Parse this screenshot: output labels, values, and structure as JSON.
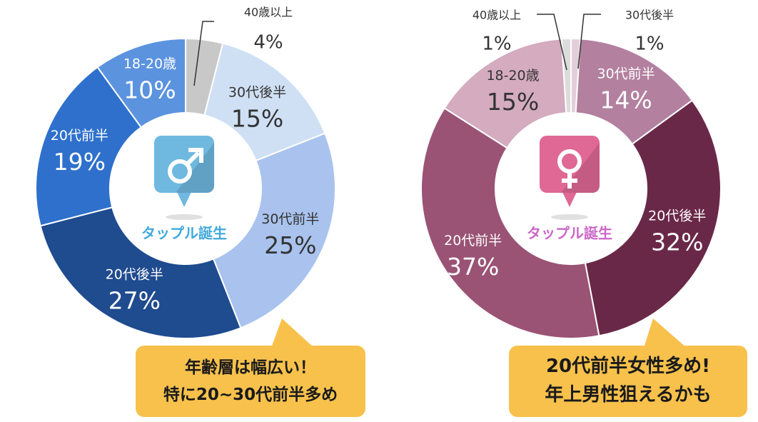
{
  "chart_data": [
    {
      "type": "pie",
      "categories": [
        "40歳以上",
        "30代後半",
        "30代前半",
        "20代後半",
        "20代前半",
        "18-20歳"
      ],
      "values": [
        4,
        15,
        25,
        27,
        19,
        10
      ],
      "value_labels": [
        "4%",
        "15%",
        "25%",
        "27%",
        "19%",
        "10%"
      ],
      "colors": [
        "#c8c8c8",
        "#cfe0f4",
        "#a9c3ee",
        "#1f4b8f",
        "#2e70cc",
        "#5b93df"
      ],
      "label_colors": [
        "#333333",
        "#333333",
        "#333333",
        "#ffffff",
        "#ffffff",
        "#ffffff"
      ],
      "center": {
        "badge_icon": "male-symbol-icon",
        "badge_color": "#6fb8e0",
        "caption": "タップル誕生",
        "caption_color": "#3fa9dc"
      }
    },
    {
      "type": "pie",
      "categories": [
        "30代後半",
        "30代前半",
        "20代後半",
        "20代前半",
        "18-20歳",
        "40歳以上"
      ],
      "values": [
        1,
        14,
        32,
        37,
        15,
        1
      ],
      "value_labels": [
        "1%",
        "14%",
        "32%",
        "37%",
        "15%",
        "1%"
      ],
      "colors": [
        "#e4cfd9",
        "#b3809f",
        "#6a2848",
        "#9a5375",
        "#d4abbf",
        "#dcdcdc"
      ],
      "label_colors": [
        "#333333",
        "#ffffff",
        "#ffffff",
        "#ffffff",
        "#333333",
        "#333333"
      ],
      "center": {
        "badge_icon": "female-symbol-icon",
        "badge_color": "#e06894",
        "caption": "タップル誕生",
        "caption_color": "#cc66c8"
      }
    }
  ],
  "notes": {
    "male": [
      "年齢層は幅広い！",
      "特に20~30代前半多め"
    ],
    "female": [
      "20代前半女性多め!",
      "年上男性狙えるかも"
    ]
  },
  "note_color": "#f7c14c"
}
